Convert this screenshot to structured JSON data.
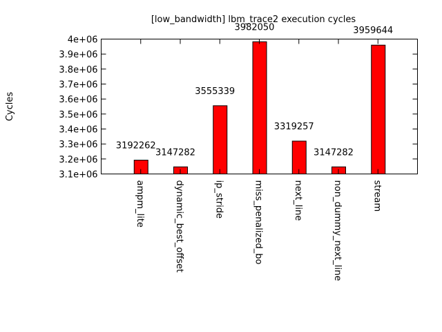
{
  "chart_data": {
    "type": "bar",
    "title": "[low_bandwidth] lbm_trace2 execution cycles",
    "xlabel": "",
    "ylabel": "Cycles",
    "ylim": [
      3100000,
      4000000
    ],
    "yticks": [
      3100000,
      3200000,
      3300000,
      3400000,
      3500000,
      3600000,
      3700000,
      3800000,
      3900000,
      4000000
    ],
    "ytick_labels": [
      "3.1e+06",
      "3.2e+06",
      "3.3e+06",
      "3.4e+06",
      "3.5e+06",
      "3.6e+06",
      "3.7e+06",
      "3.8e+06",
      "3.9e+06",
      "4e+06"
    ],
    "categories": [
      "ampm_lite",
      "dynamic_best_offset",
      "ip_stride",
      "miss_penalized_bo",
      "next_line",
      "non_dummy_next_line",
      "stream"
    ],
    "values": [
      3192262,
      3147282,
      3555339,
      3982050,
      3319257,
      3147282,
      3959644
    ],
    "data_labels": [
      "3192262",
      "3147282",
      "3555339",
      "3982050",
      "3319257",
      "3147282",
      "3959644"
    ],
    "bar_color": "#ff0000",
    "grid": false,
    "legend": "none"
  }
}
